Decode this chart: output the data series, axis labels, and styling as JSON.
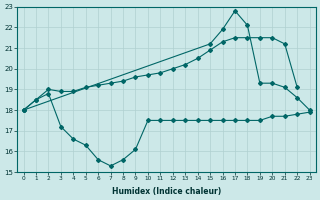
{
  "xlabel": "Humidex (Indice chaleur)",
  "bg_color": "#cce8e8",
  "grid_color": "#b0d0d0",
  "line_color": "#006666",
  "ylim": [
    15,
    23
  ],
  "xlim": [
    -0.5,
    23.5
  ],
  "yticks": [
    15,
    16,
    17,
    18,
    19,
    20,
    21,
    22,
    23
  ],
  "xticks": [
    0,
    1,
    2,
    3,
    4,
    5,
    6,
    7,
    8,
    9,
    10,
    11,
    12,
    13,
    14,
    15,
    16,
    17,
    18,
    19,
    20,
    21,
    22,
    23
  ],
  "series": [
    {
      "x": [
        0,
        1,
        2,
        3,
        4,
        5,
        6,
        7,
        8,
        9,
        10,
        11,
        12,
        13,
        14,
        15,
        16,
        17,
        18,
        19,
        20,
        21,
        22,
        23
      ],
      "y": [
        18.0,
        18.5,
        18.8,
        17.2,
        16.6,
        16.3,
        15.6,
        15.3,
        15.6,
        16.1,
        17.5,
        17.5,
        17.5,
        17.5,
        17.5,
        17.5,
        17.5,
        17.5,
        17.5,
        17.5,
        17.7,
        17.7,
        17.8,
        17.9
      ]
    },
    {
      "x": [
        0,
        1,
        2,
        3,
        4,
        5,
        6,
        7,
        8,
        9,
        10,
        11,
        12,
        13,
        14,
        15,
        16,
        17,
        18,
        19,
        20,
        21,
        22
      ],
      "y": [
        18.0,
        18.5,
        19.0,
        18.9,
        18.9,
        19.1,
        19.2,
        19.3,
        19.4,
        19.6,
        19.7,
        19.8,
        20.0,
        20.2,
        20.5,
        20.9,
        21.3,
        21.5,
        21.5,
        21.5,
        21.5,
        21.2,
        19.1
      ]
    },
    {
      "x": [
        0,
        15,
        16,
        17,
        18,
        19,
        20,
        21,
        22,
        23
      ],
      "y": [
        18.0,
        21.2,
        21.9,
        22.8,
        22.1,
        19.3,
        19.3,
        19.1,
        18.6,
        18.0
      ]
    }
  ]
}
